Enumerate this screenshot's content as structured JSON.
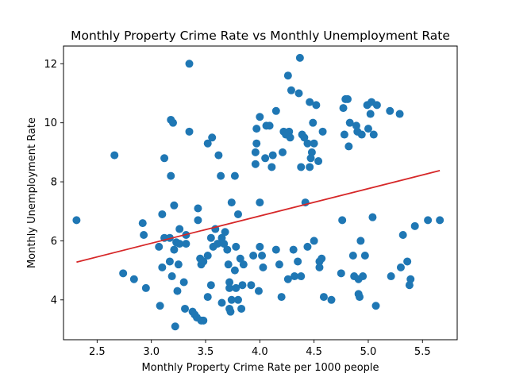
{
  "chart_data": {
    "type": "scatter",
    "title": "Monthly Property Crime Rate vs Monthly Unemployment Rate",
    "xlabel": "Monthly Property Crime Rate per 1000 people",
    "ylabel": "Monthly Unemployment Rate",
    "xlim": [
      2.19,
      5.82
    ],
    "ylim": [
      2.65,
      12.6
    ],
    "xticks": [
      2.5,
      3.0,
      3.5,
      4.0,
      4.5,
      5.0,
      5.5
    ],
    "xtick_labels": [
      "2.5",
      "3.0",
      "3.5",
      "4.0",
      "4.5",
      "5.0",
      "5.5"
    ],
    "yticks": [
      4,
      6,
      8,
      10,
      12
    ],
    "ytick_labels": [
      "4",
      "6",
      "8",
      "10",
      "12"
    ],
    "grid": false,
    "colors": {
      "points": "#1f77b4",
      "regression": "#d62728"
    },
    "regression_line": {
      "x": [
        2.31,
        5.66
      ],
      "y": [
        5.28,
        8.38
      ]
    },
    "points": [
      {
        "x": 2.31,
        "y": 6.7
      },
      {
        "x": 2.66,
        "y": 8.9
      },
      {
        "x": 2.74,
        "y": 4.9
      },
      {
        "x": 2.84,
        "y": 4.7
      },
      {
        "x": 2.92,
        "y": 6.6
      },
      {
        "x": 2.93,
        "y": 6.2
      },
      {
        "x": 2.95,
        "y": 4.4
      },
      {
        "x": 3.07,
        "y": 5.8
      },
      {
        "x": 3.08,
        "y": 3.8
      },
      {
        "x": 3.1,
        "y": 6.9
      },
      {
        "x": 3.1,
        "y": 5.1
      },
      {
        "x": 3.12,
        "y": 8.8
      },
      {
        "x": 3.12,
        "y": 6.1
      },
      {
        "x": 3.17,
        "y": 6.1
      },
      {
        "x": 3.17,
        "y": 5.3
      },
      {
        "x": 3.18,
        "y": 10.1
      },
      {
        "x": 3.18,
        "y": 8.2
      },
      {
        "x": 3.19,
        "y": 4.8
      },
      {
        "x": 3.2,
        "y": 10.0
      },
      {
        "x": 3.21,
        "y": 7.2
      },
      {
        "x": 3.21,
        "y": 5.7
      },
      {
        "x": 3.22,
        "y": 3.1
      },
      {
        "x": 3.23,
        "y": 5.95
      },
      {
        "x": 3.24,
        "y": 4.3
      },
      {
        "x": 3.25,
        "y": 5.2
      },
      {
        "x": 3.26,
        "y": 6.4
      },
      {
        "x": 3.26,
        "y": 5.9
      },
      {
        "x": 3.3,
        "y": 4.6
      },
      {
        "x": 3.31,
        "y": 3.7
      },
      {
        "x": 3.32,
        "y": 6.2
      },
      {
        "x": 3.32,
        "y": 5.9
      },
      {
        "x": 3.35,
        "y": 12.0
      },
      {
        "x": 3.35,
        "y": 9.7
      },
      {
        "x": 3.38,
        "y": 3.6
      },
      {
        "x": 3.4,
        "y": 3.5
      },
      {
        "x": 3.42,
        "y": 3.4
      },
      {
        "x": 3.43,
        "y": 7.1
      },
      {
        "x": 3.43,
        "y": 6.7
      },
      {
        "x": 3.45,
        "y": 5.4
      },
      {
        "x": 3.46,
        "y": 5.2
      },
      {
        "x": 3.46,
        "y": 3.3
      },
      {
        "x": 3.48,
        "y": 3.3
      },
      {
        "x": 3.48,
        "y": 5.3
      },
      {
        "x": 3.52,
        "y": 9.3
      },
      {
        "x": 3.52,
        "y": 5.5
      },
      {
        "x": 3.52,
        "y": 4.1
      },
      {
        "x": 3.55,
        "y": 6.1
      },
      {
        "x": 3.55,
        "y": 4.5
      },
      {
        "x": 3.56,
        "y": 9.5
      },
      {
        "x": 3.57,
        "y": 5.8
      },
      {
        "x": 3.59,
        "y": 6.4
      },
      {
        "x": 3.61,
        "y": 5.9
      },
      {
        "x": 3.62,
        "y": 8.9
      },
      {
        "x": 3.64,
        "y": 8.2
      },
      {
        "x": 3.65,
        "y": 6.1
      },
      {
        "x": 3.65,
        "y": 3.9
      },
      {
        "x": 3.67,
        "y": 5.9
      },
      {
        "x": 3.68,
        "y": 6.3
      },
      {
        "x": 3.7,
        "y": 5.7
      },
      {
        "x": 3.71,
        "y": 5.2
      },
      {
        "x": 3.72,
        "y": 4.6
      },
      {
        "x": 3.72,
        "y": 4.4
      },
      {
        "x": 3.72,
        "y": 3.7
      },
      {
        "x": 3.73,
        "y": 3.6
      },
      {
        "x": 3.74,
        "y": 7.3
      },
      {
        "x": 3.74,
        "y": 4.0
      },
      {
        "x": 3.77,
        "y": 8.2
      },
      {
        "x": 3.77,
        "y": 5.0
      },
      {
        "x": 3.78,
        "y": 4.4
      },
      {
        "x": 3.78,
        "y": 5.8
      },
      {
        "x": 3.8,
        "y": 6.9
      },
      {
        "x": 3.8,
        "y": 4.0
      },
      {
        "x": 3.82,
        "y": 5.4
      },
      {
        "x": 3.83,
        "y": 3.7
      },
      {
        "x": 3.84,
        "y": 4.5
      },
      {
        "x": 3.85,
        "y": 5.2
      },
      {
        "x": 3.92,
        "y": 4.5
      },
      {
        "x": 3.94,
        "y": 5.5
      },
      {
        "x": 3.96,
        "y": 8.6
      },
      {
        "x": 3.96,
        "y": 9.0
      },
      {
        "x": 3.97,
        "y": 9.3
      },
      {
        "x": 3.97,
        "y": 9.8
      },
      {
        "x": 3.99,
        "y": 4.3
      },
      {
        "x": 4.0,
        "y": 5.8
      },
      {
        "x": 4.0,
        "y": 10.2
      },
      {
        "x": 4.0,
        "y": 7.3
      },
      {
        "x": 4.02,
        "y": 5.5
      },
      {
        "x": 4.03,
        "y": 5.1
      },
      {
        "x": 4.05,
        "y": 8.8
      },
      {
        "x": 4.06,
        "y": 9.9
      },
      {
        "x": 4.09,
        "y": 9.9
      },
      {
        "x": 4.11,
        "y": 8.5
      },
      {
        "x": 4.12,
        "y": 8.9
      },
      {
        "x": 4.15,
        "y": 10.4
      },
      {
        "x": 4.15,
        "y": 5.7
      },
      {
        "x": 4.18,
        "y": 5.2
      },
      {
        "x": 4.2,
        "y": 4.1
      },
      {
        "x": 4.21,
        "y": 9.0
      },
      {
        "x": 4.22,
        "y": 9.7
      },
      {
        "x": 4.24,
        "y": 9.6
      },
      {
        "x": 4.26,
        "y": 11.6
      },
      {
        "x": 4.26,
        "y": 4.7
      },
      {
        "x": 4.27,
        "y": 9.7
      },
      {
        "x": 4.28,
        "y": 9.5
      },
      {
        "x": 4.29,
        "y": 11.1
      },
      {
        "x": 4.31,
        "y": 5.7
      },
      {
        "x": 4.32,
        "y": 4.8
      },
      {
        "x": 4.35,
        "y": 5.3
      },
      {
        "x": 4.36,
        "y": 11.0
      },
      {
        "x": 4.37,
        "y": 12.2
      },
      {
        "x": 4.38,
        "y": 8.5
      },
      {
        "x": 4.38,
        "y": 4.8
      },
      {
        "x": 4.39,
        "y": 9.6
      },
      {
        "x": 4.41,
        "y": 9.5
      },
      {
        "x": 4.42,
        "y": 7.3
      },
      {
        "x": 4.44,
        "y": 9.3
      },
      {
        "x": 4.44,
        "y": 5.8
      },
      {
        "x": 4.46,
        "y": 10.7
      },
      {
        "x": 4.46,
        "y": 8.5
      },
      {
        "x": 4.47,
        "y": 8.8
      },
      {
        "x": 4.48,
        "y": 9.0
      },
      {
        "x": 4.49,
        "y": 10.0
      },
      {
        "x": 4.5,
        "y": 6.0
      },
      {
        "x": 4.5,
        "y": 9.3
      },
      {
        "x": 4.52,
        "y": 10.6
      },
      {
        "x": 4.54,
        "y": 8.7
      },
      {
        "x": 4.55,
        "y": 5.3
      },
      {
        "x": 4.55,
        "y": 5.1
      },
      {
        "x": 4.57,
        "y": 5.4
      },
      {
        "x": 4.58,
        "y": 9.7
      },
      {
        "x": 4.59,
        "y": 4.1
      },
      {
        "x": 4.66,
        "y": 4.0
      },
      {
        "x": 4.75,
        "y": 4.9
      },
      {
        "x": 4.76,
        "y": 6.7
      },
      {
        "x": 4.77,
        "y": 10.5
      },
      {
        "x": 4.78,
        "y": 9.6
      },
      {
        "x": 4.79,
        "y": 10.8
      },
      {
        "x": 4.81,
        "y": 10.8
      },
      {
        "x": 4.82,
        "y": 9.2
      },
      {
        "x": 4.83,
        "y": 10.0
      },
      {
        "x": 4.86,
        "y": 5.5
      },
      {
        "x": 4.87,
        "y": 4.8
      },
      {
        "x": 4.89,
        "y": 9.9
      },
      {
        "x": 4.9,
        "y": 9.7
      },
      {
        "x": 4.91,
        "y": 4.2
      },
      {
        "x": 4.91,
        "y": 4.7
      },
      {
        "x": 4.92,
        "y": 4.1
      },
      {
        "x": 4.93,
        "y": 6.0
      },
      {
        "x": 4.94,
        "y": 9.6
      },
      {
        "x": 4.95,
        "y": 4.8
      },
      {
        "x": 4.97,
        "y": 5.5
      },
      {
        "x": 4.99,
        "y": 10.6
      },
      {
        "x": 5.0,
        "y": 9.8
      },
      {
        "x": 5.02,
        "y": 10.3
      },
      {
        "x": 5.03,
        "y": 10.7
      },
      {
        "x": 5.04,
        "y": 6.8
      },
      {
        "x": 5.05,
        "y": 9.6
      },
      {
        "x": 5.07,
        "y": 3.8
      },
      {
        "x": 5.08,
        "y": 10.6
      },
      {
        "x": 5.2,
        "y": 10.4
      },
      {
        "x": 5.21,
        "y": 4.8
      },
      {
        "x": 5.29,
        "y": 10.3
      },
      {
        "x": 5.3,
        "y": 5.1
      },
      {
        "x": 5.32,
        "y": 6.2
      },
      {
        "x": 5.36,
        "y": 5.3
      },
      {
        "x": 5.38,
        "y": 4.5
      },
      {
        "x": 5.39,
        "y": 4.7
      },
      {
        "x": 5.43,
        "y": 6.5
      },
      {
        "x": 5.55,
        "y": 6.7
      },
      {
        "x": 5.66,
        "y": 6.7
      }
    ]
  }
}
